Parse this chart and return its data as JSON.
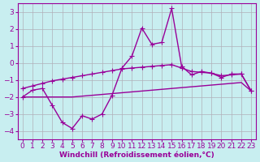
{
  "x": [
    0,
    1,
    2,
    3,
    4,
    5,
    6,
    7,
    8,
    9,
    10,
    11,
    12,
    13,
    14,
    15,
    16,
    17,
    18,
    19,
    20,
    21,
    22,
    23
  ],
  "line_main": [
    -2.0,
    -1.6,
    -1.5,
    -2.5,
    -3.5,
    -3.85,
    -3.1,
    -3.3,
    -3.0,
    -1.9,
    -0.3,
    0.4,
    2.05,
    1.1,
    1.2,
    3.2,
    -0.2,
    -0.7,
    -0.5,
    -0.6,
    -0.85,
    -0.65,
    -0.65,
    -1.65
  ],
  "line_upper": [
    -1.5,
    -1.35,
    -1.2,
    -1.05,
    -0.95,
    -0.85,
    -0.75,
    -0.65,
    -0.55,
    -0.45,
    -0.35,
    -0.3,
    -0.25,
    -0.2,
    -0.15,
    -0.1,
    -0.3,
    -0.5,
    -0.55,
    -0.6,
    -0.75,
    -0.7,
    -0.65,
    -1.65
  ],
  "line_lower": [
    -2.0,
    -2.0,
    -2.0,
    -2.0,
    -2.0,
    -2.0,
    -1.95,
    -1.9,
    -1.85,
    -1.8,
    -1.75,
    -1.7,
    -1.65,
    -1.6,
    -1.55,
    -1.5,
    -1.45,
    -1.4,
    -1.35,
    -1.3,
    -1.25,
    -1.2,
    -1.15,
    -1.65
  ],
  "color": "#990099",
  "bg_color": "#c8eef0",
  "grid_color": "#b0b0b8",
  "xlabel": "Windchill (Refroidissement éolien,°C)",
  "xlim": [
    -0.5,
    23.5
  ],
  "ylim": [
    -4.5,
    3.5
  ],
  "yticks": [
    -4,
    -3,
    -2,
    -1,
    0,
    1,
    2,
    3
  ],
  "xticks": [
    0,
    1,
    2,
    3,
    4,
    5,
    6,
    7,
    8,
    9,
    10,
    11,
    12,
    13,
    14,
    15,
    16,
    17,
    18,
    19,
    20,
    21,
    22,
    23
  ],
  "markersize": 2.5,
  "linewidth": 1.0,
  "xlabel_fontsize": 6.5,
  "tick_fontsize": 6.5
}
